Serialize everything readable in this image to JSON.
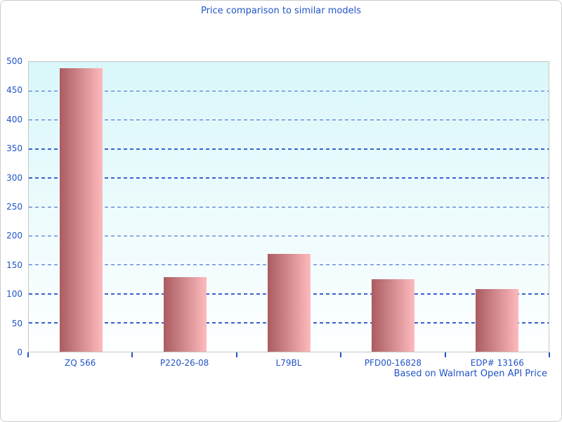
{
  "chart_data": {
    "type": "bar",
    "title": "Price comparison to similar models",
    "footer": "Based on Walmart Open API Price",
    "categories": [
      "ZQ 566",
      "P220-26-08",
      "L79BL",
      "PFD00-16828",
      "EDP# 13166"
    ],
    "values": [
      489,
      129,
      169,
      125,
      108
    ],
    "xlabel": "",
    "ylabel": "",
    "ylim": [
      0,
      500
    ],
    "yticks": [
      0,
      50,
      100,
      150,
      200,
      250,
      300,
      350,
      400,
      450,
      500
    ],
    "grid": "horizontal-dashed",
    "legend_position": "none"
  },
  "colors": {
    "text_blue": "#2154c7",
    "grid_blue": "#3a62d0",
    "bar_gradient_left": "#aa5c61",
    "bar_gradient_right": "#fdbabd",
    "plot_bg_top": "#d9f7fa",
    "plot_bg_bottom": "#feffff",
    "plot_border": "#c6c6c6",
    "window_border": "#cccccc",
    "page_background": "#ffffff"
  }
}
